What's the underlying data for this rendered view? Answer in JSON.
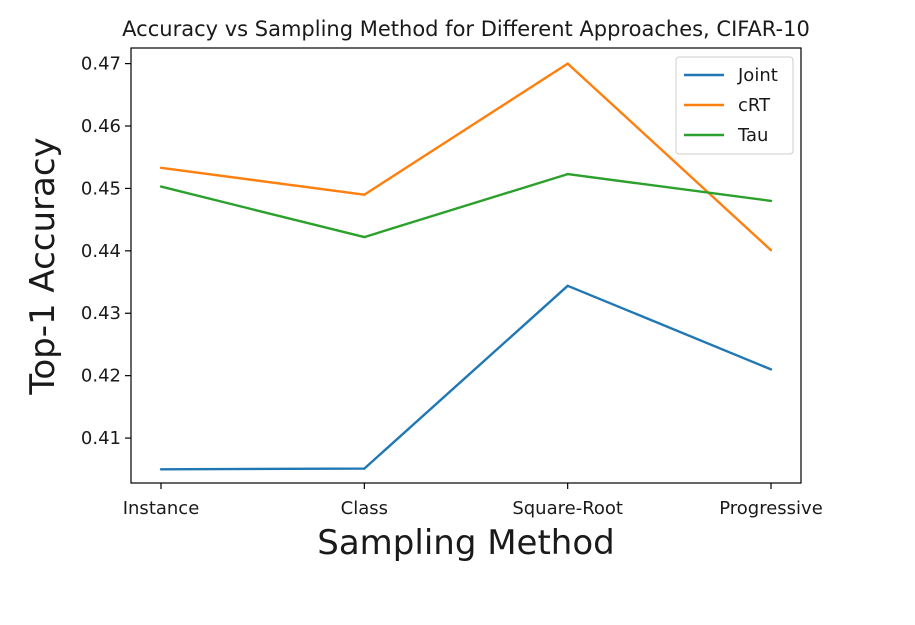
{
  "chart_data": {
    "type": "line",
    "title": "Accuracy vs Sampling Method for Different Approaches, CIFAR-10",
    "xlabel": "Sampling Method",
    "ylabel": "Top-1 Accuracy",
    "categories": [
      "Instance",
      "Class",
      "Square-Root",
      "Progressive"
    ],
    "ylim": [
      0.4028,
      0.4725
    ],
    "yticks": [
      0.41,
      0.42,
      0.43,
      0.44,
      0.45,
      0.46,
      0.47
    ],
    "ytick_labels": [
      "0.41",
      "0.42",
      "0.43",
      "0.44",
      "0.45",
      "0.46",
      "0.47"
    ],
    "grid": false,
    "legend_position": "top-right",
    "series": [
      {
        "name": "Joint",
        "color": "#1f77b4",
        "values": [
          0.405,
          0.4051,
          0.4344,
          0.421
        ]
      },
      {
        "name": "cRT",
        "color": "#ff7f0e",
        "values": [
          0.4533,
          0.449,
          0.47,
          0.4401
        ]
      },
      {
        "name": "Tau",
        "color": "#2ca02c",
        "values": [
          0.4503,
          0.4422,
          0.4523,
          0.448
        ]
      }
    ]
  }
}
